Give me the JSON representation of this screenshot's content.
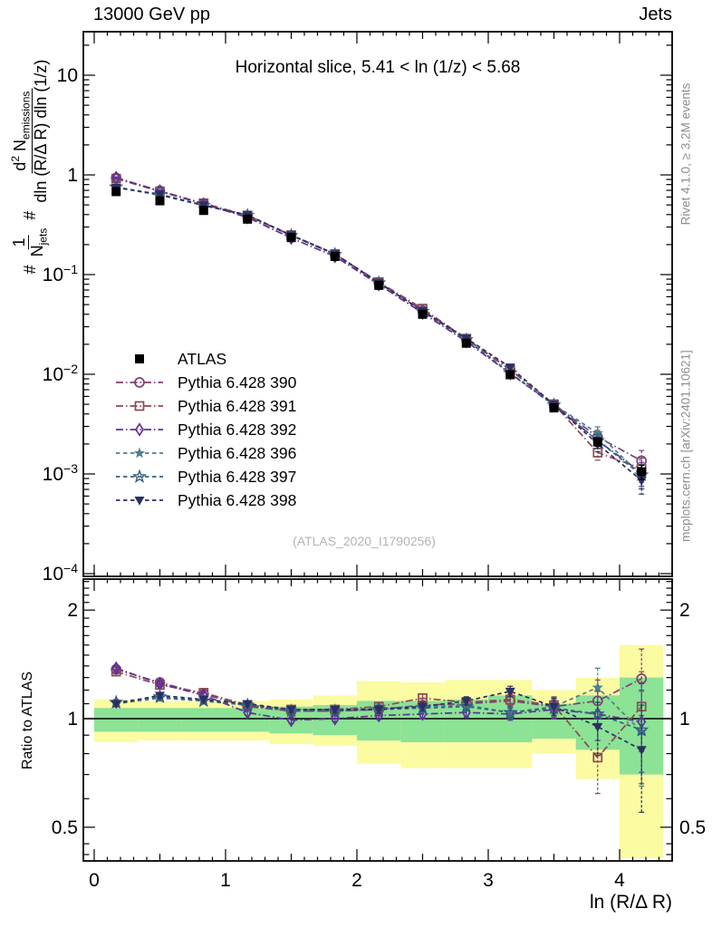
{
  "header": {
    "left": "13000 GeV pp",
    "right": "Jets"
  },
  "panel_title": "Horizontal slice, 5.41 < ln (1/z) < 5.68",
  "watermark": "(ATLAS_2020_I1790256)",
  "right_captions": {
    "top": "Rivet 4.1.0, ≥ 3.2M events",
    "bottom": "mcplots.cern.ch [arXiv:2401.10621]"
  },
  "y_axis_label": {
    "hash1": "#",
    "frac1_num": "1",
    "frac1_den_base": "N",
    "frac1_den_sub": "jets",
    "hash2": "#",
    "frac2_num_d": "d",
    "frac2_num_exp": "2",
    "frac2_num_base": " N",
    "frac2_num_sub": "emissions",
    "frac2_den": "dln (R/Δ R) dln (1/z)"
  },
  "ratio_label": "Ratio to ATLAS",
  "x_axis_label": "ln (R/Δ R)",
  "chart_data": {
    "type": "line",
    "title": "Horizontal slice, 5.41 < ln (1/z) < 5.68",
    "xlabel": "ln (R/Δ R)",
    "ylabel": "1/N_jets d^2 N_emissions / dln(R/ΔR) dln(1/z)",
    "x_range": [
      0,
      4.4
    ],
    "main_y_scale": "log",
    "main_y_range": [
      0.0001,
      27
    ],
    "ratio_y_scale": "log",
    "ratio_y_range": [
      0.4,
      2.45
    ],
    "grid": false,
    "legend_position": "middle-left",
    "x": [
      0.167,
      0.5,
      0.833,
      1.167,
      1.5,
      1.833,
      2.167,
      2.5,
      2.833,
      3.167,
      3.5,
      3.833,
      4.167
    ],
    "atlas": {
      "name": "ATLAS",
      "color": "#000000",
      "marker": "square-filled",
      "values": [
        0.68,
        0.55,
        0.44,
        0.36,
        0.235,
        0.152,
        0.078,
        0.04,
        0.0205,
        0.0099,
        0.0046,
        0.0021,
        0.00105
      ]
    },
    "series": [
      {
        "name": "Pythia 6.428 390",
        "color": "#7b4173",
        "marker": "circle-open",
        "dash": "dashdot",
        "ratio": [
          1.37,
          1.26,
          1.17,
          1.08,
          1.05,
          1.05,
          1.06,
          1.09,
          1.1,
          1.12,
          1.08,
          1.12,
          1.29
        ]
      },
      {
        "name": "Pythia 6.428 391",
        "color": "#8b4a52",
        "marker": "square-open",
        "dash": "dashdot",
        "ratio": [
          1.35,
          1.24,
          1.18,
          1.09,
          1.06,
          1.06,
          1.08,
          1.14,
          1.11,
          1.13,
          1.09,
          0.78,
          1.08
        ]
      },
      {
        "name": "Pythia 6.428 392",
        "color": "#5e2f9c",
        "marker": "diamond-open",
        "dash": "dashdot",
        "ratio": [
          1.38,
          1.25,
          1.16,
          1.04,
          0.99,
          1.0,
          1.02,
          1.03,
          1.04,
          1.03,
          1.06,
          1.03,
          0.98
        ]
      },
      {
        "name": "Pythia 6.428 396",
        "color": "#4e7f8c",
        "marker": "star-filled",
        "dash": "dashed",
        "ratio": [
          1.1,
          1.14,
          1.12,
          1.09,
          1.06,
          1.06,
          1.07,
          1.08,
          1.09,
          1.04,
          1.08,
          1.22,
          0.92
        ]
      },
      {
        "name": "Pythia 6.428 397",
        "color": "#35607f",
        "marker": "star-open",
        "dash": "dashed",
        "ratio": [
          1.11,
          1.15,
          1.12,
          1.09,
          1.05,
          1.05,
          1.06,
          1.07,
          1.08,
          1.04,
          1.07,
          1.03,
          0.93
        ]
      },
      {
        "name": "Pythia 6.428 398",
        "color": "#2b2f63",
        "marker": "triangle-down-filled",
        "dash": "dashed",
        "ratio": [
          1.1,
          1.16,
          1.13,
          1.1,
          1.06,
          1.06,
          1.06,
          1.08,
          1.12,
          1.19,
          1.08,
          0.95,
          0.82
        ]
      }
    ],
    "ratio_err": [
      0.02,
      0.02,
      0.02,
      0.02,
      0.02,
      0.02,
      0.025,
      0.03,
      0.03,
      0.04,
      0.06,
      0.16,
      0.27
    ],
    "bands": {
      "yellow": {
        "color": "#fbfba2",
        "lo": [
          0.86,
          0.87,
          0.87,
          0.87,
          0.85,
          0.84,
          0.75,
          0.73,
          0.73,
          0.73,
          0.8,
          0.68,
          0.41
        ],
        "hi": [
          1.13,
          1.12,
          1.12,
          1.12,
          1.13,
          1.16,
          1.27,
          1.26,
          1.28,
          1.28,
          1.2,
          1.3,
          1.6
        ]
      },
      "green": {
        "color": "#8ce295",
        "lo": [
          0.92,
          0.92,
          0.92,
          0.92,
          0.91,
          0.9,
          0.87,
          0.86,
          0.86,
          0.86,
          0.88,
          0.82,
          0.7
        ],
        "hi": [
          1.07,
          1.07,
          1.07,
          1.07,
          1.08,
          1.09,
          1.12,
          1.12,
          1.13,
          1.16,
          1.1,
          1.16,
          1.3
        ]
      }
    },
    "main_y_ticks": [
      {
        "v": 10,
        "base": "10",
        "exp": ""
      },
      {
        "v": 1,
        "base": "1",
        "exp": ""
      },
      {
        "v": 0.1,
        "base": "10",
        "exp": "−1"
      },
      {
        "v": 0.01,
        "base": "10",
        "exp": "−2"
      },
      {
        "v": 0.001,
        "base": "10",
        "exp": "−3"
      },
      {
        "v": 0.0001,
        "base": "10",
        "exp": "−4"
      }
    ],
    "x_ticks": [
      {
        "v": 0,
        "label": "0"
      },
      {
        "v": 1,
        "label": "1"
      },
      {
        "v": 2,
        "label": "2"
      },
      {
        "v": 3,
        "label": "3"
      },
      {
        "v": 4,
        "label": "4"
      }
    ],
    "ratio_y_ticks": [
      {
        "v": 2,
        "label": "2"
      },
      {
        "v": 1,
        "label": "1"
      },
      {
        "v": 0.5,
        "label": "0.5"
      }
    ]
  }
}
